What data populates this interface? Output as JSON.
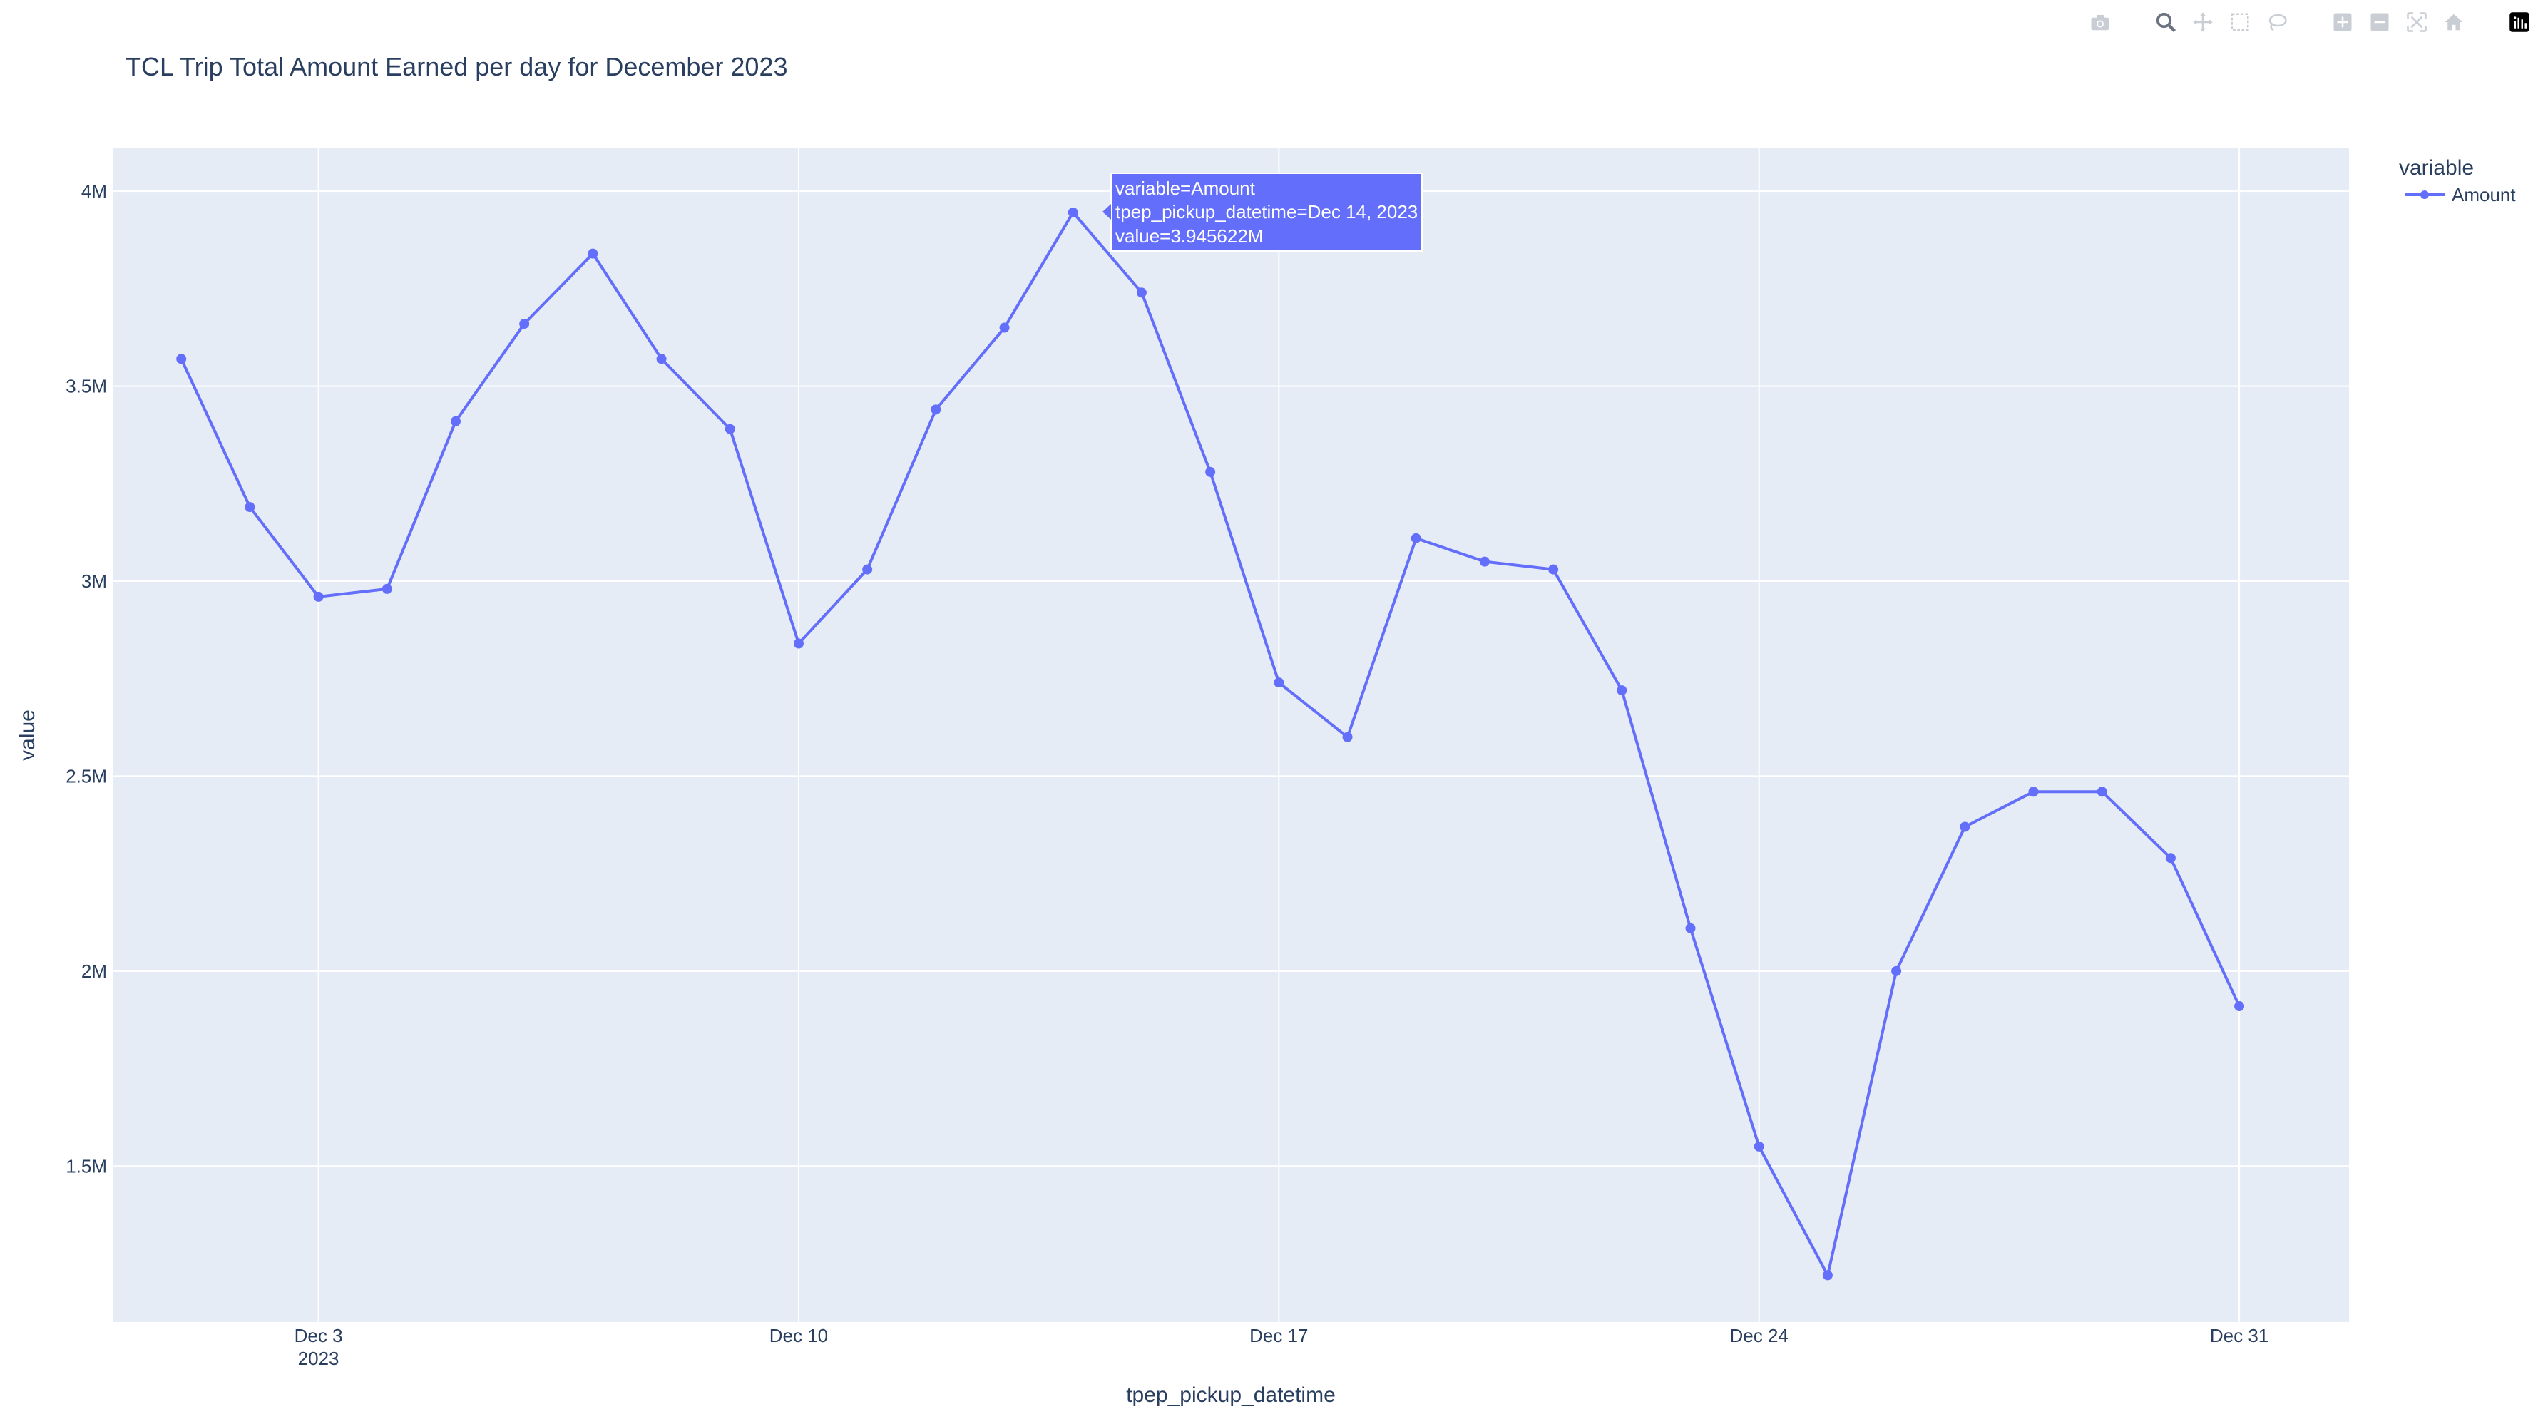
{
  "toolbar": {
    "buttons": [
      {
        "name": "camera-icon",
        "title": "Download plot as a png"
      },
      {
        "name": "zoom-icon",
        "title": "Zoom"
      },
      {
        "name": "pan-icon",
        "title": "Pan"
      },
      {
        "name": "box-select-icon",
        "title": "Box Select"
      },
      {
        "name": "lasso-select-icon",
        "title": "Lasso Select"
      },
      {
        "name": "zoom-in-icon",
        "title": "Zoom in"
      },
      {
        "name": "zoom-out-icon",
        "title": "Zoom out"
      },
      {
        "name": "autoscale-icon",
        "title": "Autoscale"
      },
      {
        "name": "reset-axes-icon",
        "title": "Reset axes"
      },
      {
        "name": "plotly-logo-icon",
        "title": "Produced with Plotly"
      }
    ]
  },
  "colors": {
    "plot_bg": "#e5ecf6",
    "grid": "#ffffff",
    "line": "#636efa",
    "text": "#2a3f5f",
    "toolbar_icon": "#c9cdd4",
    "toolbar_active": "#6b7280"
  },
  "chart_data": {
    "type": "line",
    "title": "TCL Trip Total Amount Earned per day for December 2023",
    "xlabel": "tpep_pickup_datetime",
    "ylabel": "value",
    "x_ticks": [
      "Dec 3",
      "Dec 10",
      "Dec 17",
      "Dec 24",
      "Dec 31"
    ],
    "x_tick_year": "2023",
    "y_ticks": [
      "1.5M",
      "2M",
      "2.5M",
      "3M",
      "3.5M",
      "4M"
    ],
    "x_range": [
      "2023-11-29",
      "2023-12-32"
    ],
    "ylim": [
      1.1,
      4.11
    ],
    "grid": true,
    "legend_title": "variable",
    "legend_placement": "top-right",
    "series": [
      {
        "name": "Amount",
        "x": [
          "2023-12-01",
          "2023-12-02",
          "2023-12-03",
          "2023-12-04",
          "2023-12-05",
          "2023-12-06",
          "2023-12-07",
          "2023-12-08",
          "2023-12-09",
          "2023-12-10",
          "2023-12-11",
          "2023-12-12",
          "2023-12-13",
          "2023-12-14",
          "2023-12-15",
          "2023-12-16",
          "2023-12-17",
          "2023-12-18",
          "2023-12-19",
          "2023-12-20",
          "2023-12-21",
          "2023-12-22",
          "2023-12-23",
          "2023-12-24",
          "2023-12-25",
          "2023-12-26",
          "2023-12-27",
          "2023-12-28",
          "2023-12-29",
          "2023-12-30",
          "2023-12-31"
        ],
        "values": [
          3.57,
          3.19,
          2.96,
          2.98,
          3.41,
          3.66,
          3.84,
          3.57,
          3.39,
          2.84,
          3.03,
          3.44,
          3.65,
          3.945622,
          3.74,
          3.28,
          2.74,
          2.6,
          3.11,
          3.05,
          3.03,
          2.72,
          2.11,
          1.55,
          1.22,
          2.0,
          2.37,
          2.46,
          2.46,
          2.29,
          1.91
        ]
      }
    ],
    "hover": {
      "lines": [
        "variable=Amount",
        "tpep_pickup_datetime=Dec 14, 2023",
        "value=3.945622M"
      ]
    }
  }
}
